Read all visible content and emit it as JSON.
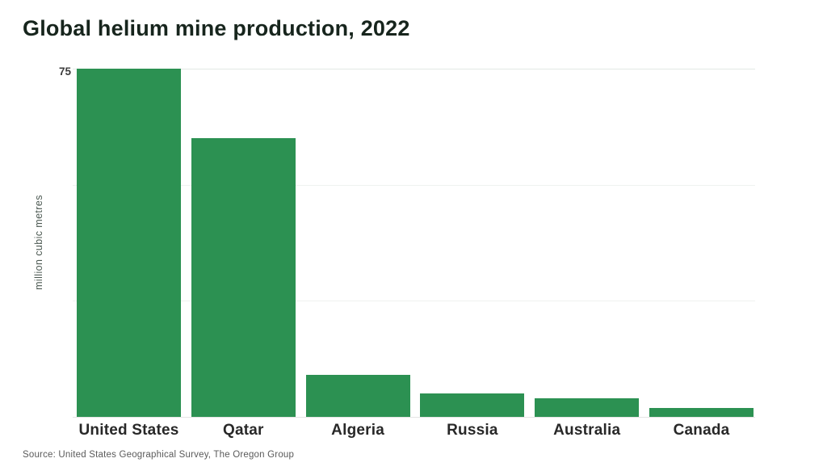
{
  "title": "Global helium mine production, 2022",
  "source": "Source: United States Geographical Survey, The Oregon Group",
  "colors": {
    "bar": "#2c9152",
    "title": "#17251d",
    "gridline": "#eff2f0",
    "axis_text": "#3c3c3c"
  },
  "chart_data": {
    "type": "bar",
    "title": "Global helium mine production, 2022",
    "categories": [
      "United States",
      "Qatar",
      "Algeria",
      "Russia",
      "Australia",
      "Canada"
    ],
    "values": [
      75,
      60,
      9,
      5,
      4,
      2
    ],
    "xlabel": "",
    "ylabel": "million cubic metres",
    "ylim": [
      0,
      76
    ],
    "gridline_values": [
      25,
      50,
      75
    ],
    "labeled_ticks": [
      75
    ],
    "grid": "horizontal-only",
    "legend_position": "none",
    "bar_color": "#2c9152",
    "source": "Source: United States Geographical Survey, The Oregon Group"
  }
}
